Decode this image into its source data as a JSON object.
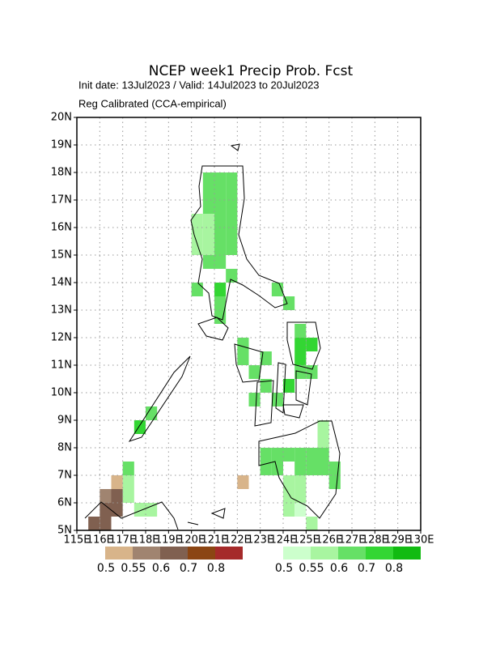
{
  "chart_data": {
    "type": "gridmap",
    "title": "NCEP week1 Precip Prob. Fcst",
    "subtitle": "Init date: 13Jul2023 / Valid: 14Jul2023 to 20Jul2023",
    "note": "Reg Calibrated (CCA-empirical)",
    "xlim": [
      115,
      130
    ],
    "ylim": [
      5,
      20
    ],
    "cell_size": 0.5,
    "grid": true,
    "xticks": [
      {
        "value": 115,
        "label": "115E"
      },
      {
        "value": 116,
        "label": "116E"
      },
      {
        "value": 117,
        "label": "117E"
      },
      {
        "value": 118,
        "label": "118E"
      },
      {
        "value": 119,
        "label": "119E"
      },
      {
        "value": 120,
        "label": "120E"
      },
      {
        "value": 121,
        "label": "121E"
      },
      {
        "value": 122,
        "label": "122E"
      },
      {
        "value": 123,
        "label": "123E"
      },
      {
        "value": 124,
        "label": "124E"
      },
      {
        "value": 125,
        "label": "125E"
      },
      {
        "value": 126,
        "label": "126E"
      },
      {
        "value": 127,
        "label": "127E"
      },
      {
        "value": 128,
        "label": "128E"
      },
      {
        "value": 129,
        "label": "129E"
      },
      {
        "value": 130,
        "label": "130E"
      }
    ],
    "yticks": [
      {
        "value": 5,
        "label": "5N"
      },
      {
        "value": 6,
        "label": "6N"
      },
      {
        "value": 7,
        "label": "7N"
      },
      {
        "value": 8,
        "label": "8N"
      },
      {
        "value": 9,
        "label": "9N"
      },
      {
        "value": 10,
        "label": "10N"
      },
      {
        "value": 11,
        "label": "11N"
      },
      {
        "value": 12,
        "label": "12N"
      },
      {
        "value": 13,
        "label": "13N"
      },
      {
        "value": 14,
        "label": "14N"
      },
      {
        "value": 15,
        "label": "15N"
      },
      {
        "value": 16,
        "label": "16N"
      },
      {
        "value": 17,
        "label": "17N"
      },
      {
        "value": 18,
        "label": "18N"
      },
      {
        "value": 19,
        "label": "19N"
      },
      {
        "value": 20,
        "label": "20N"
      }
    ],
    "levels": [
      0.5,
      0.55,
      0.6,
      0.7,
      0.8
    ],
    "brown_colors": [
      "#d8b48a",
      "#a08470",
      "#806050",
      "#8b4513",
      "#a52a2a"
    ],
    "green_colors": [
      "#ccffcc",
      "#a8f5a0",
      "#66e066",
      "#33d633",
      "#11bb11"
    ],
    "green_cells": {
      "lon": [
        120.5,
        121,
        121.5,
        120.5,
        121,
        121.5,
        120.5,
        121,
        121.5,
        120.5,
        121,
        121.5,
        120.5,
        121,
        121.5,
        120.5,
        121,
        121.5,
        120,
        120,
        120,
        120.5,
        121,
        121.5,
        121,
        120,
        121,
        121,
        122,
        122,
        122.5,
        123,
        124.5,
        125,
        124.5,
        124.5,
        124.5,
        125,
        123.5,
        124,
        118,
        117.5,
        123,
        123.5,
        124,
        124.5,
        125,
        125.5,
        123,
        123.5,
        124.5,
        125,
        125.5,
        126,
        124,
        124.5,
        124,
        124.5,
        124,
        124.5,
        125,
        125.5,
        125.5,
        126,
        117,
        117,
        117.5,
        118,
        117,
        123,
        123.5,
        122.5,
        124
      ],
      "lat": [
        17.5,
        17.5,
        17.5,
        17,
        17,
        17,
        16.5,
        16.5,
        16.5,
        16,
        16,
        16,
        15.5,
        15.5,
        15.5,
        15,
        15,
        15,
        16,
        15.5,
        15,
        14.5,
        14.5,
        14,
        13.5,
        13.5,
        12.5,
        13,
        11,
        11.5,
        10.5,
        10,
        11.5,
        11.5,
        11,
        12,
        10.5,
        10.5,
        13.5,
        13,
        9,
        8.5,
        7.5,
        7.5,
        7.5,
        7.5,
        7.5,
        7.5,
        7,
        7,
        7,
        7,
        7,
        7,
        6.5,
        6.5,
        6,
        6,
        5.5,
        5.5,
        5,
        8,
        8.5,
        6.5,
        6,
        6.5,
        5.5,
        5.5,
        7,
        11,
        9.5,
        9.5,
        10
      ],
      "values": [
        0.6,
        0.6,
        0.6,
        0.6,
        0.6,
        0.6,
        0.6,
        0.6,
        0.6,
        0.55,
        0.6,
        0.6,
        0.55,
        0.6,
        0.6,
        0.55,
        0.6,
        0.6,
        0.55,
        0.55,
        0.55,
        0.6,
        0.6,
        0.6,
        0.7,
        0.6,
        0.6,
        0.6,
        0.6,
        0.6,
        0.6,
        0.6,
        0.7,
        0.7,
        0.7,
        0.6,
        0.6,
        0.6,
        0.6,
        0.6,
        0.6,
        0.7,
        0.6,
        0.6,
        0.6,
        0.6,
        0.6,
        0.6,
        0.6,
        0.6,
        0.6,
        0.6,
        0.6,
        0.6,
        0.55,
        0.55,
        0.55,
        0.55,
        0.55,
        0.5,
        0.55,
        0.55,
        0.55,
        0.6,
        0.55,
        0.55,
        0.55,
        0.55,
        0.6,
        0.6,
        0.6,
        0.6,
        0.7
      ]
    },
    "brown_cells": {
      "lon": [
        116,
        116,
        116.5,
        116.5,
        116.5,
        116,
        115.5,
        122
      ],
      "lat": [
        6,
        5.5,
        6,
        5.5,
        6.5,
        5,
        5,
        6.5
      ],
      "values": [
        0.55,
        0.6,
        0.6,
        0.6,
        0.5,
        0.6,
        0.6,
        0.5
      ]
    }
  }
}
